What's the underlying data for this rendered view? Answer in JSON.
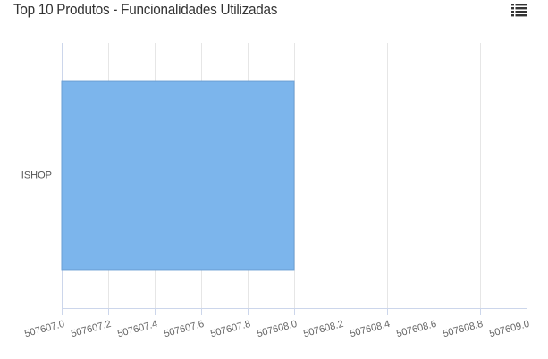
{
  "header": {
    "title": "Top 10 Produtos - Funcionalidades Utilizadas",
    "menu_icon": "list-menu-icon"
  },
  "colors": {
    "bar": "#7cb5ec",
    "bar_stroke": "#6a9fd4",
    "grid": "#e6e6e6",
    "axis": "#ccd6eb"
  },
  "chart_data": {
    "type": "bar",
    "orientation": "horizontal",
    "title": "Top 10 Produtos - Funcionalidades Utilizadas",
    "categories": [
      "ISHOP"
    ],
    "values": [
      507608.0
    ],
    "xlim": [
      507607.0,
      507609.0
    ],
    "x_ticks": [
      507607.0,
      507607.2,
      507607.4,
      507607.6,
      507607.8,
      507608.0,
      507608.2,
      507608.4,
      507608.6,
      507608.8,
      507609.0
    ],
    "x_tick_labels": [
      "507607.0",
      "507607.2",
      "507607.4",
      "507607.6",
      "507607.8",
      "507608.0",
      "507608.2",
      "507608.4",
      "507608.6",
      "507608.8",
      "507609.0"
    ],
    "grid": true,
    "legend": false
  }
}
